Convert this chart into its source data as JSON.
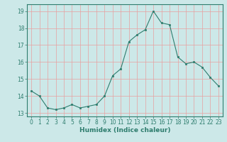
{
  "x": [
    0,
    1,
    2,
    3,
    4,
    5,
    6,
    7,
    8,
    9,
    10,
    11,
    12,
    13,
    14,
    15,
    16,
    17,
    18,
    19,
    20,
    21,
    22,
    23
  ],
  "y": [
    14.3,
    14.0,
    13.3,
    13.2,
    13.3,
    13.5,
    13.3,
    13.4,
    13.5,
    14.0,
    15.2,
    15.6,
    17.2,
    17.6,
    17.9,
    19.0,
    18.3,
    18.2,
    16.3,
    15.9,
    16.0,
    15.7,
    15.1,
    14.6
  ],
  "line_color": "#2e7d6e",
  "marker": "s",
  "marker_size": 2.0,
  "bg_color": "#cce8e8",
  "grid_color": "#e8a0a0",
  "axis_color": "#2e7d6e",
  "xlabel": "Humidex (Indice chaleur)",
  "ylim": [
    12.8,
    19.4
  ],
  "xlim": [
    -0.5,
    23.5
  ],
  "yticks": [
    13,
    14,
    15,
    16,
    17,
    18,
    19
  ],
  "xlabel_fontsize": 6.5,
  "tick_fontsize": 5.5,
  "line_width": 0.8
}
